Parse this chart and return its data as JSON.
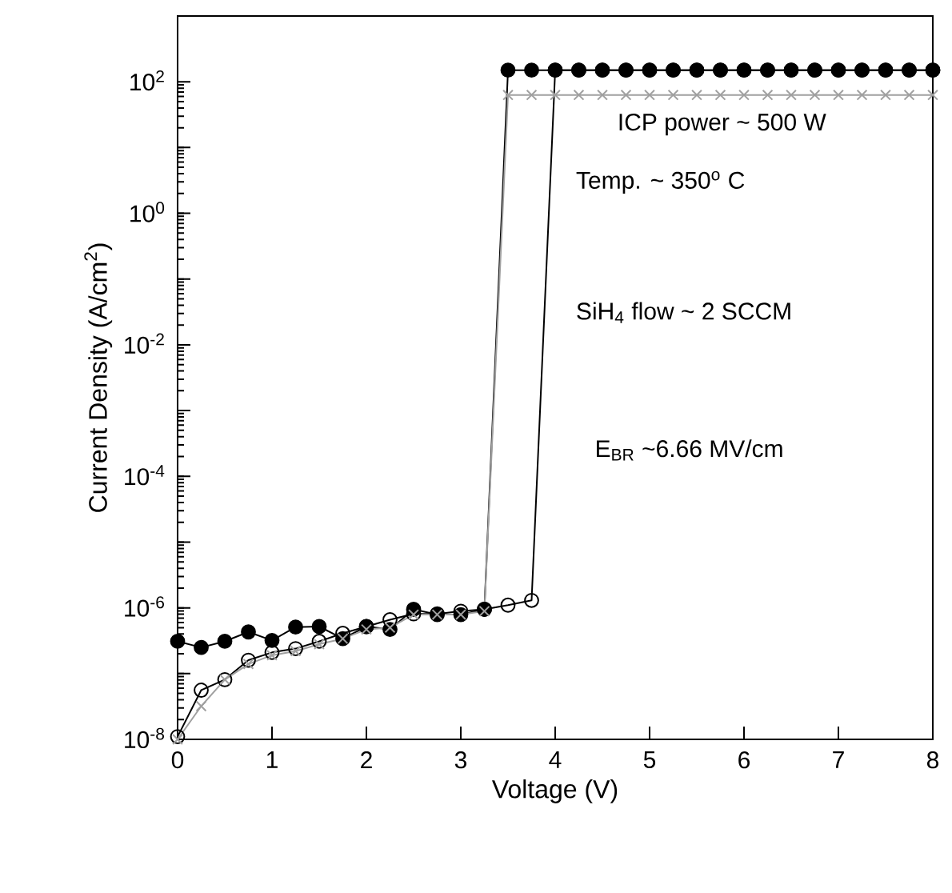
{
  "chart_data": {
    "type": "line",
    "xlabel": "Voltage (V)",
    "ylabel": "Current Density (A/cm$^{2}$)",
    "log": "y",
    "line_style": "solid",
    "x": [
      0,
      0.25,
      0.5,
      0.75,
      1,
      1.25,
      1.5,
      1.75,
      2,
      2.25,
      2.5,
      2.75,
      3,
      3.25,
      3.5,
      3.75,
      4,
      4.25,
      4.5,
      4.75,
      5,
      5.25,
      5.5,
      5.75,
      6,
      6.25,
      6.5,
      6.75,
      7,
      7.25,
      7.5,
      7.75,
      8
    ],
    "series": [
      {
        "color": "#000000",
        "marker": "circle",
        "values": [
          3.1e-07,
          2.5e-07,
          3.1e-07,
          4.3e-07,
          3.2e-07,
          5.1e-07,
          5.2e-07,
          3.4e-07,
          5.2e-07,
          4.7e-07,
          9.5e-07,
          7.9e-07,
          7.9e-07,
          9.5e-07,
          150,
          150,
          150,
          150,
          150,
          150,
          150,
          150,
          150,
          150,
          150,
          150,
          150,
          150,
          150,
          150,
          150,
          150,
          150
        ]
      },
      {
        "color": "#000000",
        "marker": "circle",
        "values": [
          1.1e-08,
          5.6e-08,
          8.1e-08,
          1.6e-07,
          2.1e-07,
          2.4e-07,
          3.1e-07,
          4.1e-07,
          5.2e-07,
          6.6e-07,
          8.1e-07,
          8.1e-07,
          8.9e-07,
          9.5e-07,
          1.1e-06,
          1.3e-06,
          150,
          150,
          150,
          150,
          150,
          150,
          150,
          150,
          150,
          150,
          150,
          150,
          150,
          150,
          150,
          150,
          150
        ]
      },
      {
        "color": "#a0a0a0",
        "marker": "cross",
        "values": [
          1e-08,
          3.2e-08,
          8.1e-08,
          1.4e-07,
          1.9e-07,
          2.2e-07,
          2.8e-07,
          3.4e-07,
          4.7e-07,
          5e-07,
          7.9e-07,
          7.9e-07,
          7.9e-07,
          8.9e-07,
          63,
          63,
          63,
          63,
          63,
          63,
          63,
          63,
          63,
          63,
          63,
          63,
          63,
          63,
          63,
          63,
          63,
          63,
          63
        ]
      }
    ],
    "xlim": [
      0,
      8
    ],
    "xticks": [
      0,
      1,
      2,
      3,
      4,
      5,
      6,
      7,
      8
    ],
    "ylim": [
      1e-08,
      1000
    ],
    "yticks": [
      {
        "value": 1e-08,
        "label": "10$^{-8}$"
      },
      {
        "value": 1e-07,
        "label": null
      },
      {
        "value": 1e-06,
        "label": "10$^{-6}$"
      },
      {
        "value": 1e-05,
        "label": null
      },
      {
        "value": 0.0001,
        "label": "10$^{-4}$"
      },
      {
        "value": 0.001,
        "label": null
      },
      {
        "value": 0.01,
        "label": "10$^{-2}$"
      },
      {
        "value": 0.1,
        "label": null
      },
      {
        "value": 1,
        "label": "10$^{0}$"
      },
      {
        "value": 10,
        "label": null
      },
      {
        "value": 100,
        "label": "10$^{2}$"
      }
    ],
    "annotations": [
      "ICP power ~ 500 W",
      "Temp. ~ 350$^{o}$ C",
      "SiH$_{4}$ flow ~ 2 SCCM",
      "E$_{BR}$ ~6.66 MV/cm"
    ]
  }
}
